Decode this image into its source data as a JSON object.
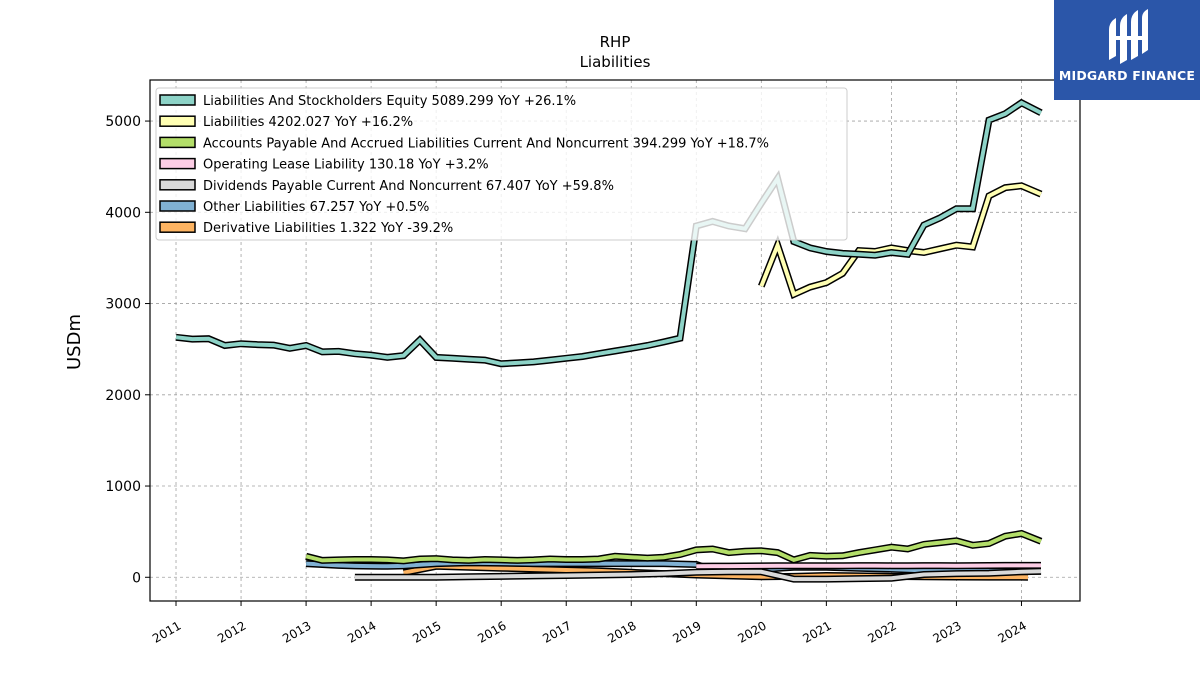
{
  "brand": {
    "name": "MIDGARD FINANCE",
    "logo_icon": "midgard-logo-icon",
    "color": "#2b56a9"
  },
  "chart_data": {
    "type": "line",
    "title": "RHP",
    "subtitle": "Liabilities",
    "xlabel": "",
    "ylabel": "USDm",
    "xlim": [
      2010.6,
      2024.9
    ],
    "ylim": [
      -260,
      5450
    ],
    "x_ticks": [
      "2011",
      "2012",
      "2013",
      "2014",
      "2015",
      "2016",
      "2017",
      "2018",
      "2019",
      "2020",
      "2021",
      "2022",
      "2023",
      "2024"
    ],
    "y_ticks": [
      "0",
      "1000",
      "2000",
      "3000",
      "4000",
      "5000"
    ],
    "grid": true,
    "legend_position": "top-left",
    "series": [
      {
        "name": "Liabilities And Stockholders Equity",
        "legend": "Liabilities And Stockholders Equity  5089.299 YoY +26.1%",
        "color": "#8dd3c7",
        "points": [
          [
            2011.0,
            2630
          ],
          [
            2011.25,
            2610
          ],
          [
            2011.5,
            2615
          ],
          [
            2011.75,
            2540
          ],
          [
            2012.0,
            2560
          ],
          [
            2012.25,
            2550
          ],
          [
            2012.5,
            2545
          ],
          [
            2012.75,
            2510
          ],
          [
            2013.0,
            2540
          ],
          [
            2013.25,
            2470
          ],
          [
            2013.5,
            2475
          ],
          [
            2013.75,
            2450
          ],
          [
            2014.0,
            2435
          ],
          [
            2014.25,
            2410
          ],
          [
            2014.5,
            2430
          ],
          [
            2014.75,
            2600
          ],
          [
            2015.0,
            2410
          ],
          [
            2015.25,
            2400
          ],
          [
            2015.5,
            2390
          ],
          [
            2015.75,
            2380
          ],
          [
            2016.0,
            2340
          ],
          [
            2016.25,
            2350
          ],
          [
            2016.5,
            2360
          ],
          [
            2016.75,
            2380
          ],
          [
            2017.0,
            2400
          ],
          [
            2017.25,
            2420
          ],
          [
            2017.5,
            2450
          ],
          [
            2017.75,
            2480
          ],
          [
            2018.0,
            2510
          ],
          [
            2018.25,
            2540
          ],
          [
            2018.5,
            2580
          ],
          [
            2018.75,
            2620
          ],
          [
            2019.0,
            3850
          ],
          [
            2019.25,
            3900
          ],
          [
            2019.5,
            3850
          ],
          [
            2019.75,
            3820
          ],
          [
            2020.0,
            4100
          ],
          [
            2020.25,
            4370
          ],
          [
            2020.5,
            3680
          ],
          [
            2020.75,
            3610
          ],
          [
            2021.0,
            3570
          ],
          [
            2021.25,
            3550
          ],
          [
            2021.5,
            3540
          ],
          [
            2021.75,
            3530
          ],
          [
            2022.0,
            3560
          ],
          [
            2022.25,
            3540
          ],
          [
            2022.5,
            3860
          ],
          [
            2022.75,
            3940
          ],
          [
            2023.0,
            4040
          ],
          [
            2023.25,
            4040
          ],
          [
            2023.5,
            5010
          ],
          [
            2023.75,
            5080
          ],
          [
            2024.0,
            5200
          ],
          [
            2024.3,
            5090
          ]
        ]
      },
      {
        "name": "Liabilities",
        "legend": "Liabilities  4202.027 YoY +16.2%",
        "color": "#ffffb3",
        "points": [
          [
            2020.0,
            3190
          ],
          [
            2020.25,
            3640
          ],
          [
            2020.5,
            3100
          ],
          [
            2020.75,
            3180
          ],
          [
            2021.0,
            3230
          ],
          [
            2021.25,
            3330
          ],
          [
            2021.5,
            3580
          ],
          [
            2021.75,
            3570
          ],
          [
            2022.0,
            3610
          ],
          [
            2022.25,
            3580
          ],
          [
            2022.5,
            3560
          ],
          [
            2022.75,
            3600
          ],
          [
            2023.0,
            3640
          ],
          [
            2023.25,
            3620
          ],
          [
            2023.5,
            4180
          ],
          [
            2023.75,
            4270
          ],
          [
            2024.0,
            4290
          ],
          [
            2024.3,
            4200
          ]
        ]
      },
      {
        "name": "Accounts Payable And Accrued Liabilities Current And Noncurrent",
        "legend": "Accounts Payable And Accrued Liabilities Current And Noncurrent  394.299 YoY +18.7%",
        "color": "#b3de69",
        "points": [
          [
            2013.0,
            230
          ],
          [
            2013.25,
            185
          ],
          [
            2013.5,
            190
          ],
          [
            2013.75,
            195
          ],
          [
            2014.0,
            195
          ],
          [
            2014.25,
            190
          ],
          [
            2014.5,
            180
          ],
          [
            2014.75,
            200
          ],
          [
            2015.0,
            205
          ],
          [
            2015.25,
            190
          ],
          [
            2015.5,
            185
          ],
          [
            2015.75,
            195
          ],
          [
            2016.0,
            190
          ],
          [
            2016.25,
            185
          ],
          [
            2016.5,
            190
          ],
          [
            2016.75,
            200
          ],
          [
            2017.0,
            195
          ],
          [
            2017.25,
            195
          ],
          [
            2017.5,
            200
          ],
          [
            2017.75,
            230
          ],
          [
            2018.0,
            220
          ],
          [
            2018.25,
            210
          ],
          [
            2018.5,
            220
          ],
          [
            2018.75,
            250
          ],
          [
            2019.0,
            300
          ],
          [
            2019.25,
            310
          ],
          [
            2019.5,
            270
          ],
          [
            2019.75,
            285
          ],
          [
            2020.0,
            290
          ],
          [
            2020.25,
            270
          ],
          [
            2020.5,
            190
          ],
          [
            2020.75,
            240
          ],
          [
            2021.0,
            230
          ],
          [
            2021.25,
            235
          ],
          [
            2021.5,
            270
          ],
          [
            2021.75,
            300
          ],
          [
            2022.0,
            330
          ],
          [
            2022.25,
            310
          ],
          [
            2022.5,
            360
          ],
          [
            2022.75,
            380
          ],
          [
            2023.0,
            400
          ],
          [
            2023.25,
            350
          ],
          [
            2023.5,
            370
          ],
          [
            2023.75,
            450
          ],
          [
            2024.0,
            480
          ],
          [
            2024.3,
            394
          ]
        ]
      },
      {
        "name": "Operating Lease Liability",
        "legend": "Operating Lease Liability  130.18 YoY +3.2%",
        "color": "#fccde5",
        "points": [
          [
            2019.0,
            120
          ],
          [
            2019.25,
            122
          ],
          [
            2019.5,
            123
          ],
          [
            2019.75,
            124
          ],
          [
            2020.0,
            125
          ],
          [
            2020.25,
            126
          ],
          [
            2020.5,
            126
          ],
          [
            2020.75,
            127
          ],
          [
            2021.0,
            127
          ],
          [
            2021.25,
            127
          ],
          [
            2021.5,
            128
          ],
          [
            2021.75,
            128
          ],
          [
            2022.0,
            127
          ],
          [
            2022.25,
            127
          ],
          [
            2022.5,
            128
          ],
          [
            2022.75,
            128
          ],
          [
            2023.0,
            127
          ],
          [
            2023.25,
            128
          ],
          [
            2023.5,
            129
          ],
          [
            2023.75,
            130
          ],
          [
            2024.0,
            130
          ],
          [
            2024.3,
            130
          ]
        ]
      },
      {
        "name": "Dividends Payable Current And Noncurrent",
        "legend": "Dividends Payable Current And Noncurrent  67.407 YoY +59.8%",
        "color": "#d9d9d9",
        "points": [
          [
            2013.75,
            0
          ],
          [
            2014.0,
            0
          ],
          [
            2014.5,
            0
          ],
          [
            2015.0,
            0
          ],
          [
            2015.5,
            5
          ],
          [
            2016.0,
            10
          ],
          [
            2016.5,
            15
          ],
          [
            2017.0,
            20
          ],
          [
            2017.5,
            25
          ],
          [
            2018.0,
            30
          ],
          [
            2018.5,
            40
          ],
          [
            2019.0,
            55
          ],
          [
            2019.5,
            60
          ],
          [
            2020.0,
            60
          ],
          [
            2020.5,
            -20
          ],
          [
            2021.0,
            -20
          ],
          [
            2021.5,
            -15
          ],
          [
            2022.0,
            -10
          ],
          [
            2022.5,
            30
          ],
          [
            2023.0,
            40
          ],
          [
            2023.5,
            45
          ],
          [
            2024.0,
            60
          ],
          [
            2024.3,
            67
          ]
        ]
      },
      {
        "name": "Other Liabilities",
        "legend": "Other Liabilities  67.257 YoY +0.5%",
        "color": "#80b1d3",
        "points": [
          [
            2013.0,
            150
          ],
          [
            2013.25,
            140
          ],
          [
            2013.5,
            130
          ],
          [
            2013.75,
            125
          ],
          [
            2014.0,
            122
          ],
          [
            2014.25,
            120
          ],
          [
            2014.5,
            125
          ],
          [
            2015.0,
            150
          ],
          [
            2015.5,
            160
          ],
          [
            2016.0,
            155
          ],
          [
            2016.5,
            150
          ],
          [
            2017.0,
            150
          ],
          [
            2017.5,
            150
          ],
          [
            2018.0,
            150
          ],
          [
            2018.5,
            150
          ],
          [
            2019.0,
            140
          ],
          [
            2019.25,
            80
          ],
          [
            2019.5,
            80
          ],
          [
            2019.75,
            80
          ],
          [
            2020.0,
            85
          ],
          [
            2020.25,
            100
          ],
          [
            2020.5,
            110
          ],
          [
            2020.75,
            110
          ],
          [
            2021.0,
            110
          ],
          [
            2021.5,
            100
          ],
          [
            2022.0,
            90
          ],
          [
            2022.5,
            75
          ],
          [
            2023.0,
            70
          ],
          [
            2023.5,
            68
          ],
          [
            2024.0,
            67
          ],
          [
            2024.3,
            67
          ]
        ]
      },
      {
        "name": "Derivative Liabilities",
        "legend": "Derivative Liabilities  1.322 YoY -39.2%",
        "color": "#fdb462",
        "points": [
          [
            2014.5,
            50
          ],
          [
            2015.0,
            120
          ],
          [
            2015.5,
            110
          ],
          [
            2016.0,
            100
          ],
          [
            2016.5,
            90
          ],
          [
            2017.0,
            80
          ],
          [
            2017.5,
            70
          ],
          [
            2018.0,
            55
          ],
          [
            2018.5,
            40
          ],
          [
            2019.0,
            25
          ],
          [
            2019.5,
            15
          ],
          [
            2020.0,
            5
          ],
          [
            2020.5,
            10
          ],
          [
            2021.0,
            20
          ],
          [
            2021.5,
            15
          ],
          [
            2022.0,
            10
          ],
          [
            2022.5,
            5
          ],
          [
            2023.0,
            3
          ],
          [
            2023.5,
            2
          ],
          [
            2024.0,
            1.5
          ],
          [
            2024.1,
            1.3
          ]
        ]
      }
    ]
  }
}
